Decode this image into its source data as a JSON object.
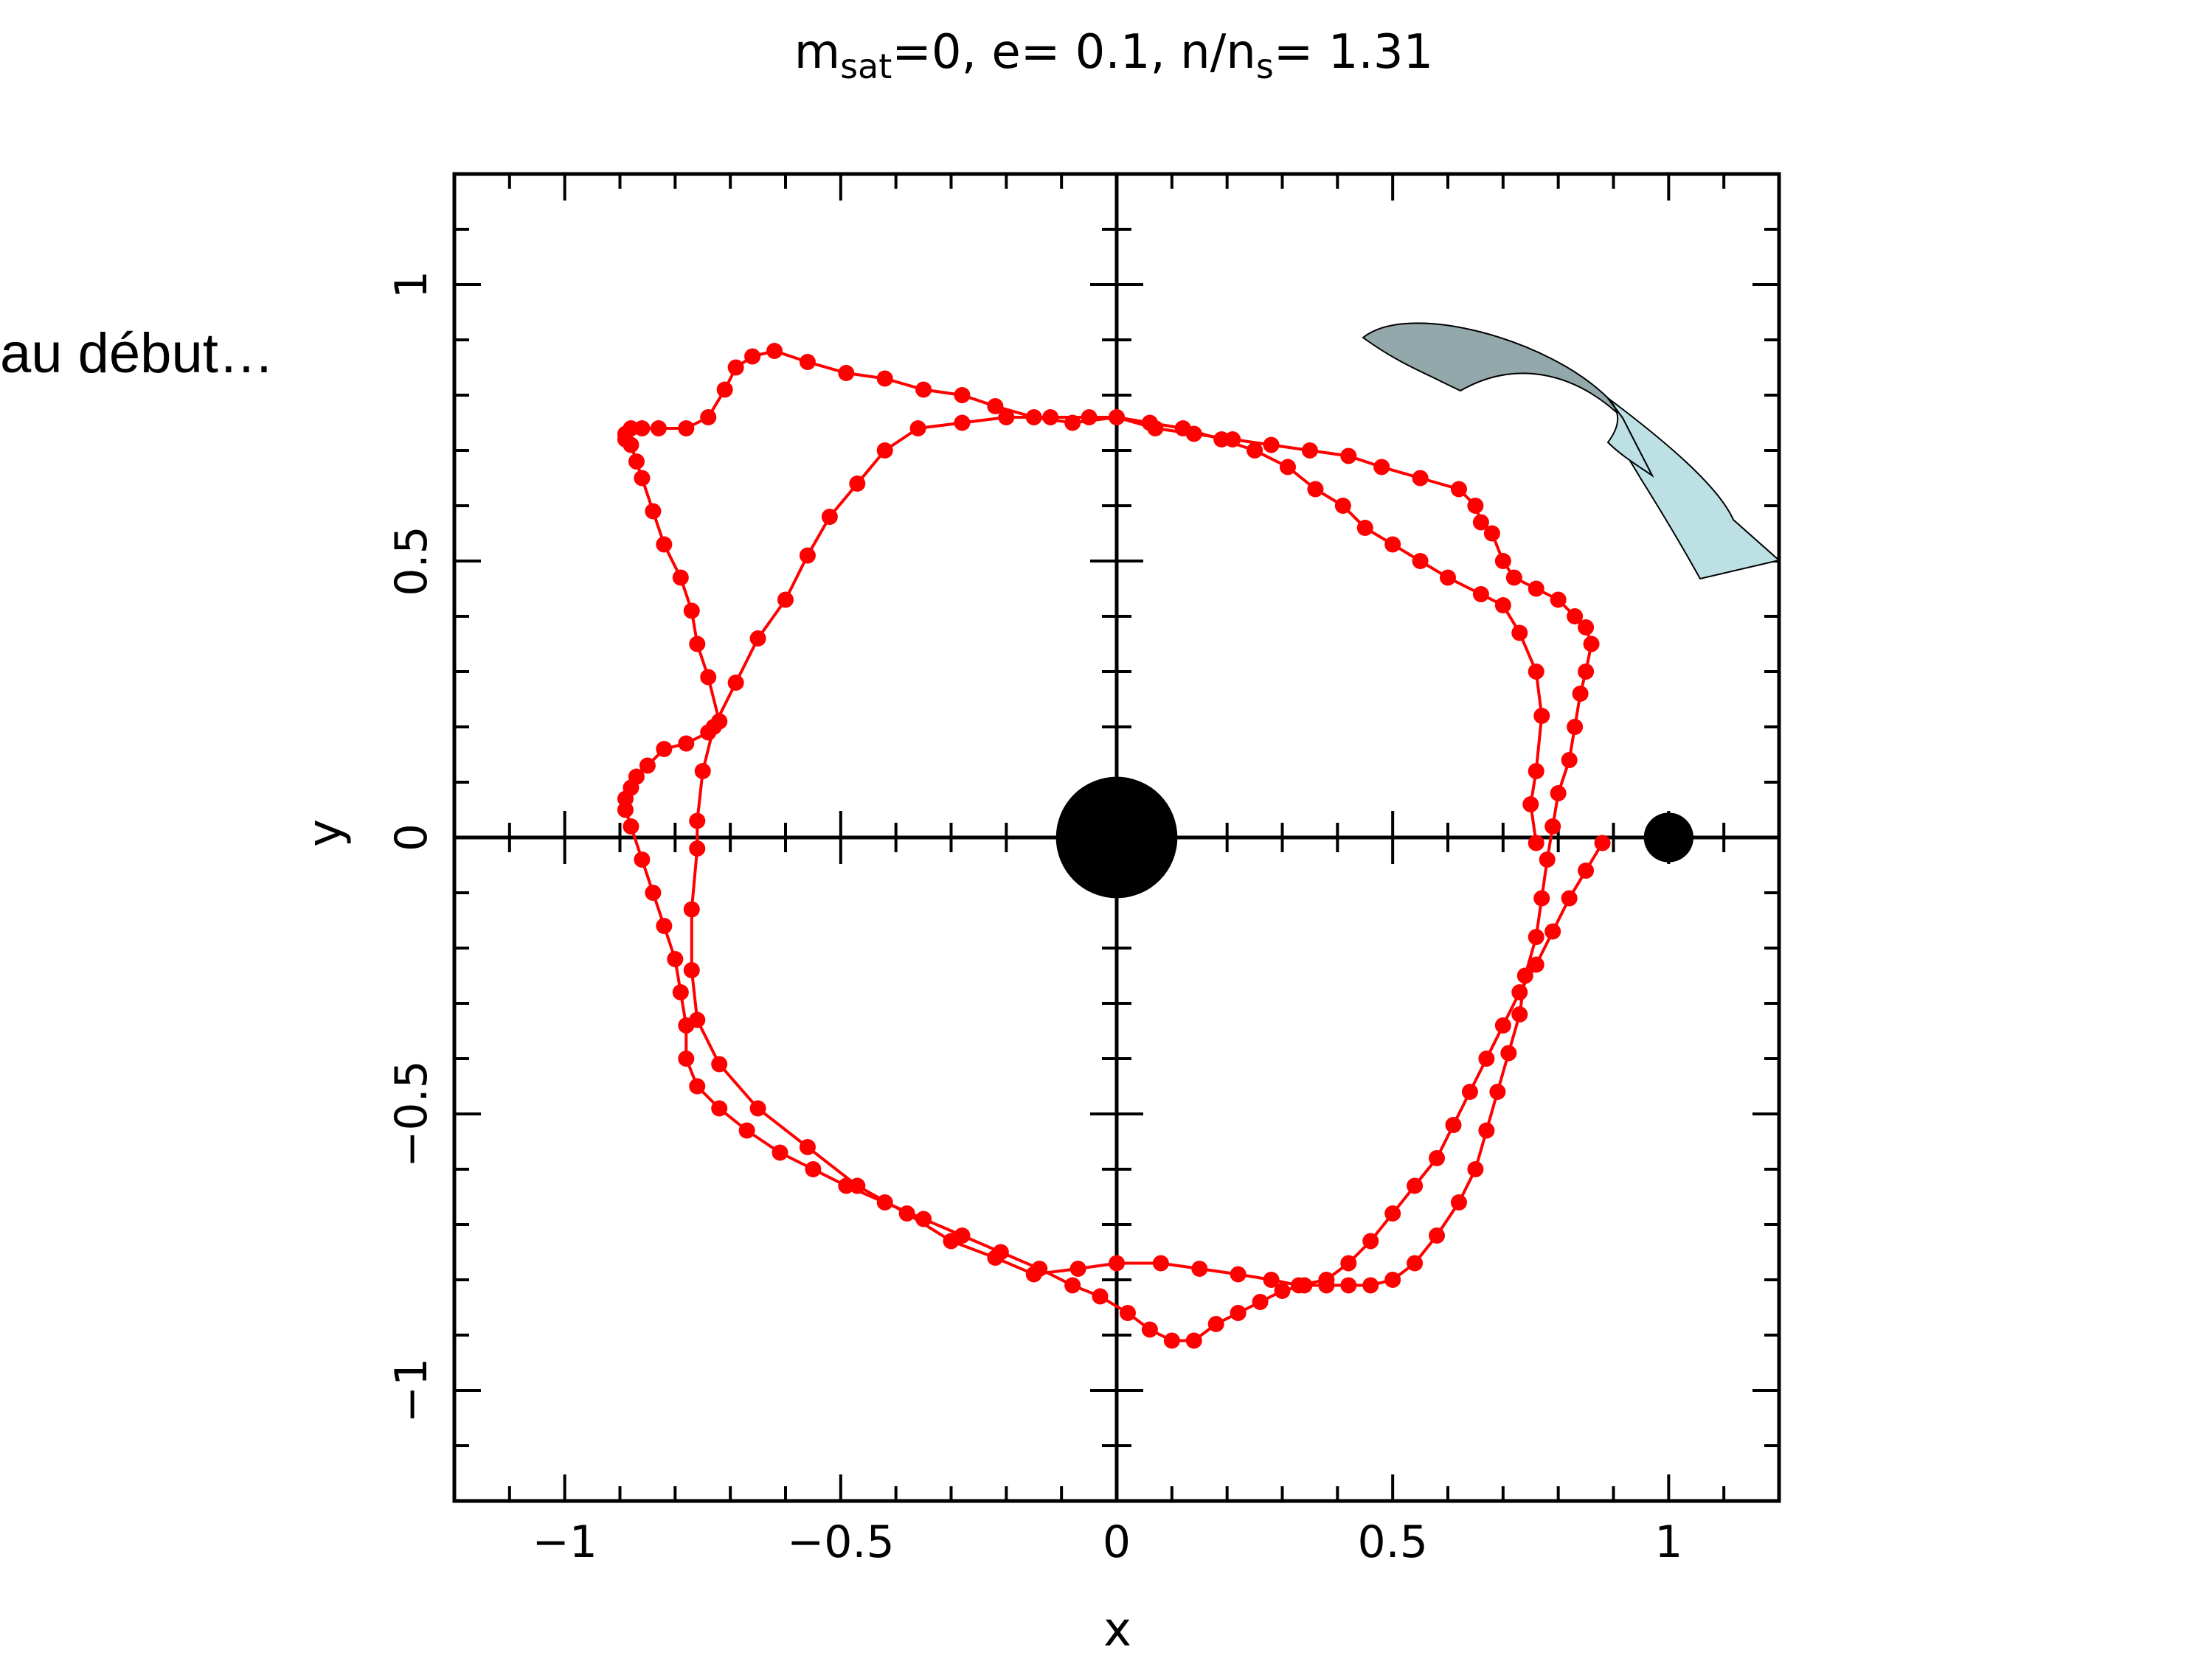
{
  "chart_data": {
    "type": "scatter",
    "title": {
      "base_m": "m",
      "sub_sat": "sat",
      "part1": "=0, e= 0.1, n/n",
      "sub_s": "s",
      "part2": "= 1.31"
    },
    "xlabel": "x",
    "ylabel": "y",
    "xlim": [
      -1.2,
      1.2
    ],
    "ylim": [
      -1.2,
      1.2
    ],
    "xticks": [
      -1,
      -0.5,
      0,
      0.5,
      1
    ],
    "xtick_labels": [
      "−1",
      "−0.5",
      "0",
      "0.5",
      "1"
    ],
    "yticks": [
      -1,
      -0.5,
      0,
      0.5,
      1
    ],
    "ytick_labels": [
      "−1",
      "−0.5",
      "0",
      "0.5",
      "1"
    ],
    "minor_step": 0.1,
    "grid": false,
    "axes_through_origin": true,
    "colors": {
      "orbit": "#ff0000",
      "bodies": "#000000",
      "arrow_dark": "#93a8aa",
      "arrow_light": "#bde0e4",
      "frame": "#000000"
    },
    "central_body": {
      "x": 0,
      "y": 0,
      "radius": 0.11
    },
    "satellite": {
      "x": 1.0,
      "y": 0.0,
      "radius": 0.045
    },
    "series": [
      {
        "points": [
          [
            0.88,
            -0.01
          ],
          [
            0.85,
            -0.06
          ],
          [
            0.82,
            -0.11
          ],
          [
            0.79,
            -0.17
          ],
          [
            0.76,
            -0.23
          ],
          [
            0.73,
            -0.28
          ],
          [
            0.7,
            -0.34
          ],
          [
            0.67,
            -0.4
          ],
          [
            0.64,
            -0.46
          ],
          [
            0.61,
            -0.52
          ],
          [
            0.58,
            -0.58
          ],
          [
            0.54,
            -0.63
          ],
          [
            0.5,
            -0.68
          ],
          [
            0.46,
            -0.73
          ],
          [
            0.42,
            -0.77
          ],
          [
            0.38,
            -0.8
          ],
          [
            0.33,
            -0.81
          ],
          [
            0.28,
            -0.8
          ],
          [
            0.22,
            -0.79
          ],
          [
            0.15,
            -0.78
          ],
          [
            0.08,
            -0.77
          ],
          [
            0.0,
            -0.77
          ],
          [
            -0.07,
            -0.78
          ],
          [
            -0.15,
            -0.79
          ],
          [
            -0.22,
            -0.76
          ],
          [
            -0.3,
            -0.73
          ],
          [
            -0.38,
            -0.68
          ],
          [
            -0.47,
            -0.63
          ],
          [
            -0.56,
            -0.56
          ],
          [
            -0.65,
            -0.49
          ],
          [
            -0.72,
            -0.41
          ],
          [
            -0.76,
            -0.33
          ],
          [
            -0.77,
            -0.24
          ],
          [
            -0.77,
            -0.13
          ],
          [
            -0.76,
            -0.02
          ],
          [
            -0.76,
            0.03
          ],
          [
            -0.75,
            0.12
          ],
          [
            -0.73,
            0.2
          ],
          [
            -0.69,
            0.28
          ],
          [
            -0.65,
            0.36
          ],
          [
            -0.6,
            0.43
          ],
          [
            -0.56,
            0.51
          ],
          [
            -0.52,
            0.58
          ],
          [
            -0.47,
            0.64
          ],
          [
            -0.42,
            0.7
          ],
          [
            -0.36,
            0.74
          ],
          [
            -0.28,
            0.75
          ],
          [
            -0.2,
            0.76
          ],
          [
            -0.12,
            0.76
          ],
          [
            -0.05,
            0.76
          ],
          [
            0.0,
            0.76
          ],
          [
            0.06,
            0.75
          ],
          [
            0.12,
            0.74
          ],
          [
            0.19,
            0.72
          ],
          [
            0.25,
            0.7
          ],
          [
            0.31,
            0.67
          ],
          [
            0.36,
            0.63
          ],
          [
            0.41,
            0.6
          ],
          [
            0.45,
            0.56
          ],
          [
            0.5,
            0.53
          ],
          [
            0.55,
            0.5
          ],
          [
            0.6,
            0.47
          ],
          [
            0.66,
            0.44
          ],
          [
            0.7,
            0.42
          ],
          [
            0.73,
            0.37
          ],
          [
            0.76,
            0.3
          ],
          [
            0.77,
            0.22
          ],
          [
            0.76,
            0.12
          ],
          [
            0.75,
            0.06
          ],
          [
            0.76,
            -0.01
          ]
        ]
      },
      {
        "points": [
          [
            -0.72,
            0.21
          ],
          [
            -0.74,
            0.29
          ],
          [
            -0.76,
            0.35
          ],
          [
            -0.77,
            0.41
          ],
          [
            -0.79,
            0.47
          ],
          [
            -0.82,
            0.53
          ],
          [
            -0.84,
            0.59
          ],
          [
            -0.86,
            0.65
          ],
          [
            -0.87,
            0.68
          ],
          [
            -0.88,
            0.71
          ],
          [
            -0.89,
            0.72
          ],
          [
            -0.89,
            0.73
          ],
          [
            -0.88,
            0.74
          ],
          [
            -0.86,
            0.74
          ],
          [
            -0.83,
            0.74
          ],
          [
            -0.78,
            0.74
          ],
          [
            -0.74,
            0.76
          ],
          [
            -0.71,
            0.81
          ],
          [
            -0.69,
            0.85
          ],
          [
            -0.66,
            0.87
          ],
          [
            -0.62,
            0.88
          ],
          [
            -0.56,
            0.86
          ],
          [
            -0.49,
            0.84
          ],
          [
            -0.42,
            0.83
          ],
          [
            -0.35,
            0.81
          ],
          [
            -0.28,
            0.8
          ],
          [
            -0.22,
            0.78
          ],
          [
            -0.15,
            0.76
          ],
          [
            -0.08,
            0.75
          ],
          [
            0.0,
            0.76
          ],
          [
            0.07,
            0.74
          ],
          [
            0.14,
            0.73
          ],
          [
            0.21,
            0.72
          ],
          [
            0.28,
            0.71
          ],
          [
            0.35,
            0.7
          ],
          [
            0.42,
            0.69
          ],
          [
            0.48,
            0.67
          ],
          [
            0.55,
            0.65
          ],
          [
            0.62,
            0.63
          ],
          [
            0.65,
            0.6
          ],
          [
            0.66,
            0.57
          ],
          [
            0.68,
            0.55
          ],
          [
            0.7,
            0.5
          ],
          [
            0.72,
            0.47
          ],
          [
            0.76,
            0.45
          ],
          [
            0.8,
            0.43
          ],
          [
            0.83,
            0.4
          ],
          [
            0.85,
            0.38
          ],
          [
            0.86,
            0.35
          ],
          [
            0.85,
            0.3
          ],
          [
            0.84,
            0.26
          ],
          [
            0.83,
            0.2
          ],
          [
            0.82,
            0.14
          ],
          [
            0.8,
            0.08
          ],
          [
            0.79,
            0.02
          ],
          [
            0.78,
            -0.04
          ],
          [
            0.77,
            -0.11
          ],
          [
            0.76,
            -0.18
          ],
          [
            0.74,
            -0.25
          ],
          [
            0.73,
            -0.32
          ],
          [
            0.71,
            -0.39
          ],
          [
            0.69,
            -0.46
          ],
          [
            0.67,
            -0.53
          ],
          [
            0.65,
            -0.6
          ],
          [
            0.62,
            -0.66
          ],
          [
            0.58,
            -0.72
          ],
          [
            0.54,
            -0.77
          ],
          [
            0.5,
            -0.8
          ],
          [
            0.46,
            -0.81
          ],
          [
            0.42,
            -0.81
          ],
          [
            0.38,
            -0.81
          ],
          [
            0.34,
            -0.81
          ],
          [
            0.3,
            -0.82
          ],
          [
            0.26,
            -0.84
          ],
          [
            0.22,
            -0.86
          ],
          [
            0.18,
            -0.88
          ],
          [
            0.14,
            -0.91
          ],
          [
            0.1,
            -0.91
          ],
          [
            0.06,
            -0.89
          ],
          [
            0.02,
            -0.86
          ],
          [
            -0.03,
            -0.83
          ],
          [
            -0.08,
            -0.81
          ],
          [
            -0.14,
            -0.78
          ],
          [
            -0.21,
            -0.75
          ],
          [
            -0.28,
            -0.72
          ],
          [
            -0.35,
            -0.69
          ],
          [
            -0.42,
            -0.66
          ],
          [
            -0.49,
            -0.63
          ],
          [
            -0.55,
            -0.6
          ],
          [
            -0.61,
            -0.57
          ],
          [
            -0.67,
            -0.53
          ],
          [
            -0.72,
            -0.49
          ],
          [
            -0.76,
            -0.45
          ],
          [
            -0.78,
            -0.4
          ],
          [
            -0.78,
            -0.34
          ],
          [
            -0.79,
            -0.28
          ],
          [
            -0.8,
            -0.22
          ],
          [
            -0.82,
            -0.16
          ],
          [
            -0.84,
            -0.1
          ],
          [
            -0.86,
            -0.04
          ],
          [
            -0.88,
            0.02
          ],
          [
            -0.89,
            0.05
          ],
          [
            -0.89,
            0.07
          ],
          [
            -0.88,
            0.09
          ],
          [
            -0.87,
            0.11
          ],
          [
            -0.85,
            0.13
          ],
          [
            -0.82,
            0.16
          ],
          [
            -0.78,
            0.17
          ],
          [
            -0.74,
            0.19
          ],
          [
            -0.72,
            0.21
          ]
        ]
      }
    ]
  },
  "annotation": {
    "text": "au début…"
  },
  "decoration": {
    "arrow": "curved-arrow"
  }
}
